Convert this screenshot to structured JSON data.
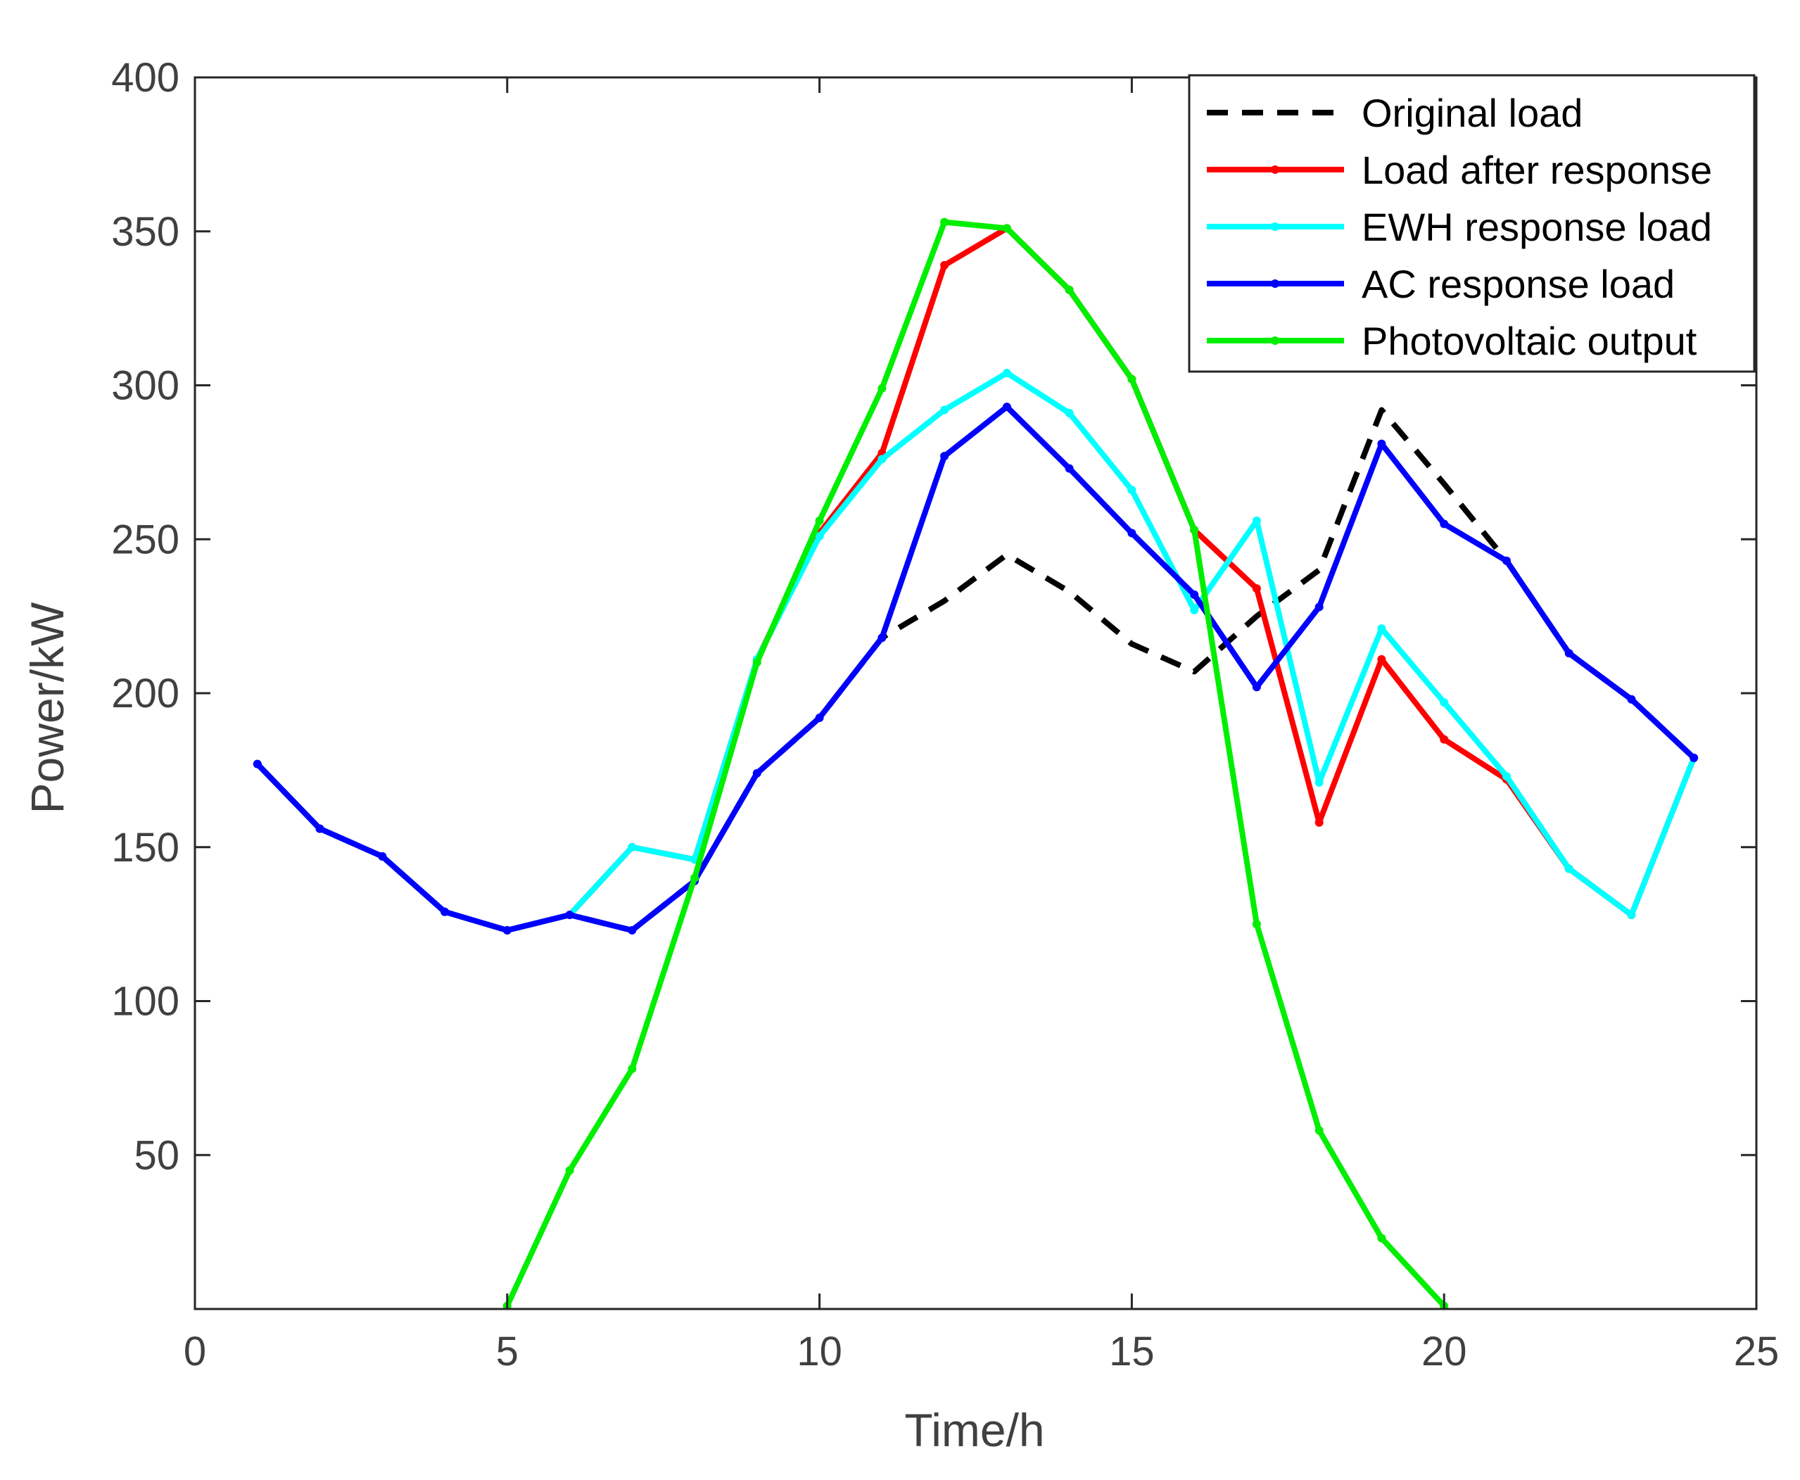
{
  "chart_data": {
    "type": "line",
    "title": "",
    "xlabel": "Time/h",
    "ylabel": "Power/kW",
    "xlim": [
      0,
      25
    ],
    "ylim": [
      0,
      400
    ],
    "xticks": [
      0,
      5,
      10,
      15,
      20,
      25
    ],
    "yticks": [
      50,
      100,
      150,
      200,
      250,
      300,
      350,
      400
    ],
    "grid": false,
    "legend_position": "top-right",
    "series": [
      {
        "name": "Original load",
        "color": "#000000",
        "style": "dashed",
        "x": [
          1,
          2,
          3,
          4,
          5,
          6,
          7,
          8,
          9,
          10,
          11,
          12,
          13,
          14,
          15,
          16,
          17,
          18,
          19,
          20,
          21,
          22,
          23,
          24
        ],
        "values": [
          177,
          156,
          147,
          129,
          123,
          128,
          123,
          139,
          174,
          192,
          218,
          230,
          245,
          233,
          216,
          207,
          225,
          240,
          292,
          268,
          243,
          213,
          198,
          179
        ]
      },
      {
        "name": "Load after response",
        "color": "#ff0000",
        "style": "solid",
        "x": [
          1,
          2,
          3,
          4,
          5,
          6,
          7,
          8,
          9,
          10,
          11,
          12,
          13,
          14,
          15,
          16,
          17,
          18,
          19,
          20,
          21,
          22,
          23,
          24
        ],
        "values": [
          177,
          156,
          147,
          129,
          123,
          128,
          150,
          146,
          211,
          252,
          278,
          339,
          351,
          331,
          302,
          253,
          234,
          158,
          211,
          185,
          172,
          143,
          128,
          179
        ]
      },
      {
        "name": "EWH response load",
        "color": "#00ffff",
        "style": "solid",
        "x": [
          1,
          2,
          3,
          4,
          5,
          6,
          7,
          8,
          9,
          10,
          11,
          12,
          13,
          14,
          15,
          16,
          17,
          18,
          19,
          20,
          21,
          22,
          23,
          24
        ],
        "values": [
          177,
          156,
          147,
          129,
          123,
          128,
          150,
          146,
          211,
          251,
          276,
          292,
          304,
          291,
          266,
          227,
          256,
          171,
          221,
          197,
          173,
          143,
          128,
          179
        ]
      },
      {
        "name": "AC response load",
        "color": "#0000ff",
        "style": "solid",
        "x": [
          1,
          2,
          3,
          4,
          5,
          6,
          7,
          8,
          9,
          10,
          11,
          12,
          13,
          14,
          15,
          16,
          17,
          18,
          19,
          20,
          21,
          22,
          23,
          24
        ],
        "values": [
          177,
          156,
          147,
          129,
          123,
          128,
          123,
          139,
          174,
          192,
          218,
          277,
          293,
          273,
          252,
          232,
          202,
          228,
          281,
          255,
          243,
          213,
          198,
          179
        ]
      },
      {
        "name": "Photovoltaic output",
        "color": "#00ee00",
        "style": "solid",
        "x": [
          5,
          6,
          7,
          8,
          9,
          10,
          11,
          12,
          13,
          14,
          15,
          16,
          17,
          18,
          19,
          20
        ],
        "values": [
          1,
          45,
          78,
          140,
          210,
          256,
          299,
          353,
          351,
          331,
          302,
          253,
          125,
          58,
          23,
          1
        ]
      }
    ]
  }
}
